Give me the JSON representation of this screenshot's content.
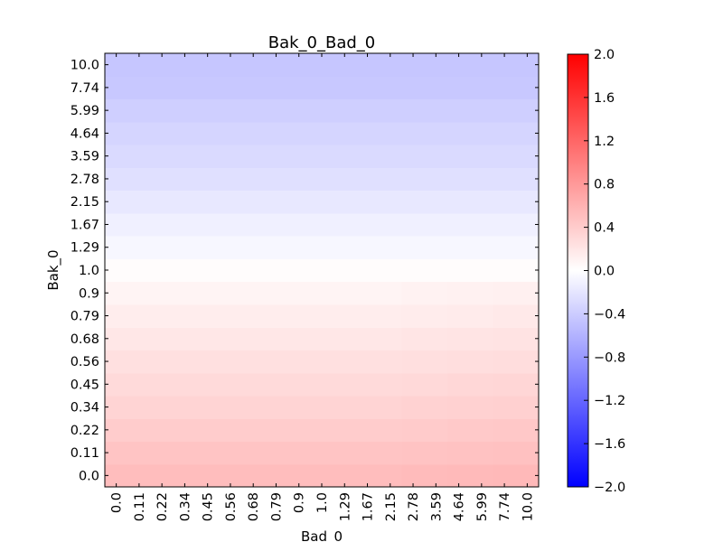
{
  "chart_data": {
    "type": "heatmap",
    "title": "Bak_0_Bad_0",
    "xlabel": "Bad_0",
    "ylabel": "Bak_0",
    "x_categories": [
      "0.0",
      "0.11",
      "0.22",
      "0.34",
      "0.45",
      "0.56",
      "0.68",
      "0.79",
      "0.9",
      "1.0",
      "1.29",
      "1.67",
      "2.15",
      "2.78",
      "3.59",
      "4.64",
      "5.99",
      "7.74",
      "10.0"
    ],
    "y_categories": [
      "0.0",
      "0.11",
      "0.22",
      "0.34",
      "0.45",
      "0.56",
      "0.68",
      "0.79",
      "0.9",
      "1.0",
      "1.29",
      "1.67",
      "2.15",
      "2.78",
      "3.59",
      "4.64",
      "5.99",
      "7.74",
      "10.0"
    ],
    "row_values": [
      0.52,
      0.46,
      0.4,
      0.34,
      0.29,
      0.24,
      0.19,
      0.14,
      0.09,
      0.02,
      -0.06,
      -0.12,
      -0.18,
      -0.24,
      -0.29,
      -0.33,
      -0.38,
      -0.43,
      -0.45
    ],
    "column_offsets": [
      0.0,
      0.0,
      0.0,
      0.0,
      0.0,
      0.0,
      0.0,
      0.0,
      0.0,
      0.0,
      0.0,
      0.0,
      0.0,
      0.01,
      0.01,
      0.02,
      0.02,
      0.03,
      0.03
    ],
    "colorbar": {
      "colormap": "bwr",
      "vmin": -2.0,
      "vmax": 2.0,
      "tick_labels": [
        "−2.0",
        "−1.6",
        "−1.2",
        "−0.8",
        "−0.4",
        "0.0",
        "0.4",
        "0.8",
        "1.2",
        "1.6",
        "2.0"
      ]
    },
    "colors": {
      "low": "#0000ff",
      "mid": "#ffffff",
      "high": "#ff0000"
    },
    "grid": false
  }
}
